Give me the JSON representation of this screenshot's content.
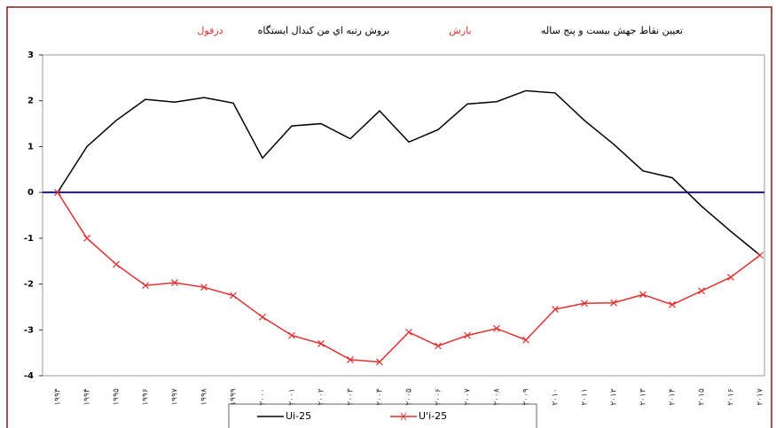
{
  "chart_data": {
    "type": "line",
    "title_parts": [
      {
        "text": "تعیین نقاط جهش بیست و پنج ساله",
        "color": "#000000"
      },
      {
        "text": "بارش",
        "color": "#e03030"
      },
      {
        "text": "بروش رتبه اي من كندال ايستگاه",
        "color": "#000000"
      },
      {
        "text": "دزفول",
        "color": "#e03030"
      }
    ],
    "categories": [
      "۱۹۹۳",
      "۱۹۹۴",
      "۱۹۹۵",
      "۱۹۹۶",
      "۱۹۹۷",
      "۱۹۹۸",
      "۱۹۹۹",
      "۲۰۰۰",
      "۲۰۰۱",
      "۲۰۰۲",
      "۲۰۰۳",
      "۲۰۰۴",
      "۲۰۰۵",
      "۲۰۰۶",
      "۲۰۰۷",
      "۲۰۰۸",
      "۲۰۰۹",
      "۲۰۱۰",
      "۲۰۱۱",
      "۲۰۱۲",
      "۲۰۱۳",
      "۲۰۱۴",
      "۲۰۱۵",
      "۲۰۱۶",
      "۲۰۱۷"
    ],
    "series": [
      {
        "name": "Ui-25",
        "color": "#000000",
        "marker": "none",
        "values": [
          0,
          1.0,
          1.57,
          2.03,
          1.97,
          2.07,
          1.95,
          0.75,
          1.45,
          1.5,
          1.17,
          1.78,
          1.1,
          1.37,
          1.93,
          1.98,
          2.22,
          2.17,
          1.57,
          1.05,
          0.47,
          0.32,
          -0.3,
          -0.85,
          -1.37
        ]
      },
      {
        "name": "U'i-25",
        "color": "#e03030",
        "marker": "x",
        "values": [
          0,
          -1.0,
          -1.57,
          -2.03,
          -1.97,
          -2.07,
          -2.25,
          -2.72,
          -3.12,
          -3.3,
          -3.65,
          -3.7,
          -3.05,
          -3.35,
          -3.12,
          -2.97,
          -3.22,
          -2.55,
          -2.42,
          -2.41,
          -2.23,
          -2.45,
          -2.15,
          -1.85,
          -1.37
        ]
      }
    ],
    "ylim": [
      -4,
      3
    ],
    "yticks": [
      -4,
      -3,
      -2,
      -1,
      0,
      1,
      2,
      3
    ],
    "zero_line_color": "#1a1a80"
  }
}
